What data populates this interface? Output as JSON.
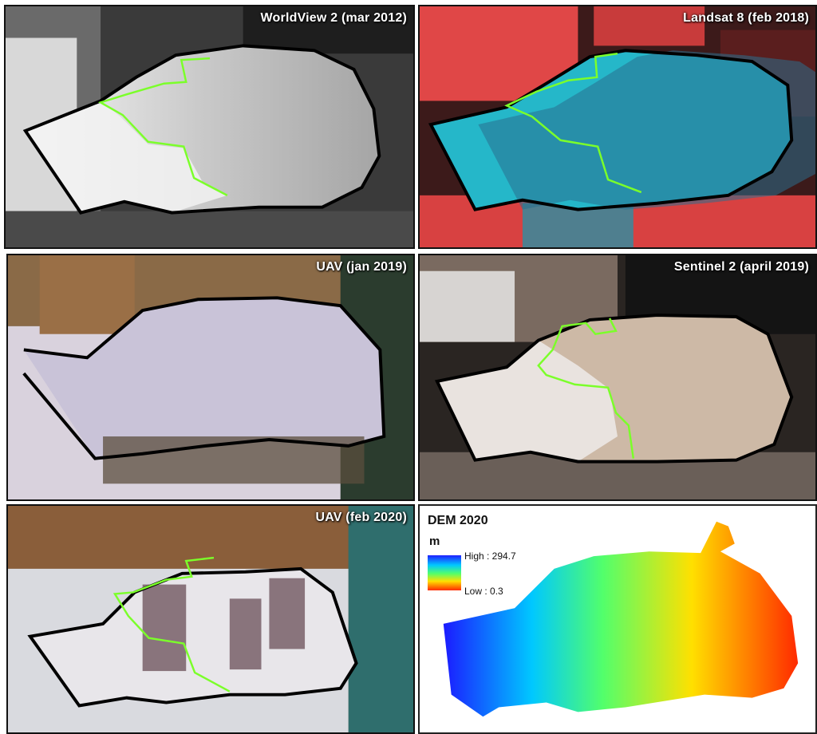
{
  "panels": {
    "worldview": {
      "title": "WorldView 2 (mar 2012)"
    },
    "landsat": {
      "title": "Landsat 8 (feb 2018)"
    },
    "uav2019": {
      "title": "UAV (jan 2019)"
    },
    "sentinel": {
      "title": "Sentinel 2 (april 2019)"
    },
    "uav2020": {
      "title": "UAV (feb 2020)"
    },
    "dem": {
      "title": "DEM 2020",
      "unit": "m",
      "high_label": "High : 294.7",
      "low_label": "Low : 0.3",
      "high_value": 294.7,
      "low_value": 0.3
    }
  },
  "colors": {
    "outline": "#000000",
    "trace_line": "#7bff2a"
  }
}
